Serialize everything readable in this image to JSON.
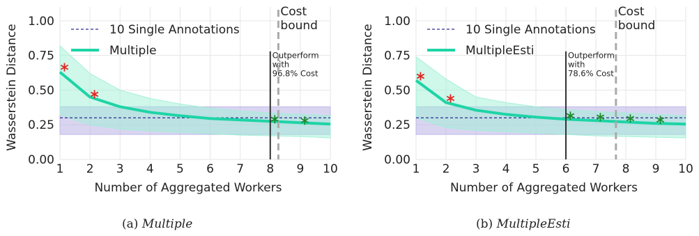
{
  "colors": {
    "multiple_line": "#1ed4a6",
    "multiple_band": "#9ff0d6",
    "single_line": "#2b2a8e",
    "single_band": "#b9b3e6",
    "cost_bound": "#aaaaaa",
    "outperform_line": "#333333",
    "marker_worse": "#e0251f",
    "marker_better": "#1a8a2a",
    "grid": "#e6e6e6"
  },
  "chart_data": [
    {
      "type": "line",
      "caption_label": "(a)",
      "caption_name": "Multiple",
      "xlabel": "Number of Aggregated Workers",
      "ylabel": "Wasserstein Distance",
      "xlim": [
        1,
        10
      ],
      "ylim": [
        0,
        1.1
      ],
      "xticks": [
        "1",
        "2",
        "3",
        "4",
        "5",
        "6",
        "7",
        "8",
        "9",
        "10"
      ],
      "yticks": [
        "0.00",
        "0.25",
        "0.50",
        "0.75",
        "1.00"
      ],
      "grid": true,
      "legend_position": "top-left",
      "series": [
        {
          "name": "10 Single Annotations",
          "style": "dashed",
          "x": [
            1,
            10
          ],
          "y": [
            0.3,
            0.3
          ],
          "band_low": [
            0.18,
            0.18
          ],
          "band_high": [
            0.38,
            0.38
          ]
        },
        {
          "name": "Multiple",
          "style": "solid",
          "x": [
            1,
            2,
            3,
            4,
            5,
            6,
            7,
            8,
            9,
            10
          ],
          "y": [
            0.63,
            0.45,
            0.38,
            0.34,
            0.315,
            0.295,
            0.285,
            0.275,
            0.265,
            0.255
          ],
          "band_low": [
            0.32,
            0.25,
            0.22,
            0.205,
            0.195,
            0.185,
            0.175,
            0.17,
            0.165,
            0.155
          ],
          "band_high": [
            0.82,
            0.62,
            0.5,
            0.44,
            0.4,
            0.37,
            0.35,
            0.335,
            0.325,
            0.315
          ]
        }
      ],
      "markers": [
        {
          "x": 1.15,
          "y": 0.665,
          "kind": "worse"
        },
        {
          "x": 2.15,
          "y": 0.47,
          "kind": "worse"
        },
        {
          "x": 8.15,
          "y": 0.29,
          "kind": "better"
        },
        {
          "x": 9.15,
          "y": 0.28,
          "kind": "better"
        }
      ],
      "outperform_x": 8,
      "outperform_text": [
        "Outperform",
        "with",
        "96.8% Cost"
      ],
      "cost_bound_x": 8.27,
      "cost_bound_text": [
        "Cost",
        "bound"
      ]
    },
    {
      "type": "line",
      "caption_label": "(b)",
      "caption_name": "MultipleEsti",
      "xlabel": "Number of Aggregated Workers",
      "ylabel": "Wasserstein Distance",
      "xlim": [
        1,
        10
      ],
      "ylim": [
        0,
        1.1
      ],
      "xticks": [
        "1",
        "2",
        "3",
        "4",
        "5",
        "6",
        "7",
        "8",
        "9",
        "10"
      ],
      "yticks": [
        "0.00",
        "0.25",
        "0.50",
        "0.75",
        "1.00"
      ],
      "grid": true,
      "legend_position": "top-left",
      "series": [
        {
          "name": "10 Single Annotations",
          "style": "dashed",
          "x": [
            1,
            10
          ],
          "y": [
            0.3,
            0.3
          ],
          "band_low": [
            0.18,
            0.18
          ],
          "band_high": [
            0.38,
            0.38
          ]
        },
        {
          "name": "MultipleEsti",
          "style": "solid",
          "x": [
            1,
            2,
            3,
            4,
            5,
            6,
            7,
            8,
            9,
            10
          ],
          "y": [
            0.57,
            0.41,
            0.355,
            0.325,
            0.305,
            0.29,
            0.28,
            0.27,
            0.26,
            0.255
          ],
          "band_low": [
            0.3,
            0.23,
            0.21,
            0.2,
            0.19,
            0.18,
            0.17,
            0.165,
            0.16,
            0.155
          ],
          "band_high": [
            0.74,
            0.58,
            0.45,
            0.41,
            0.38,
            0.36,
            0.345,
            0.335,
            0.325,
            0.315
          ]
        }
      ],
      "markers": [
        {
          "x": 1.15,
          "y": 0.6,
          "kind": "worse"
        },
        {
          "x": 2.15,
          "y": 0.44,
          "kind": "worse"
        },
        {
          "x": 6.15,
          "y": 0.315,
          "kind": "better"
        },
        {
          "x": 7.15,
          "y": 0.305,
          "kind": "better"
        },
        {
          "x": 8.15,
          "y": 0.295,
          "kind": "better"
        },
        {
          "x": 9.15,
          "y": 0.285,
          "kind": "better"
        }
      ],
      "outperform_x": 6,
      "outperform_text": [
        "Outperform",
        "with",
        "78.6% Cost"
      ],
      "cost_bound_x": 7.67,
      "cost_bound_text": [
        "Cost",
        "bound"
      ]
    }
  ]
}
